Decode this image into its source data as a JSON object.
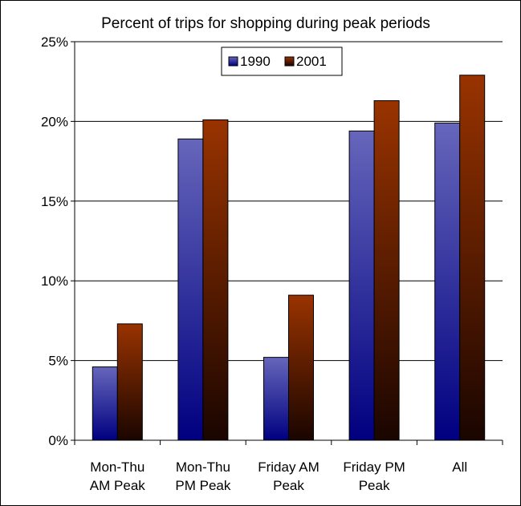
{
  "chart_data": {
    "type": "bar",
    "title": "Percent of trips for shopping during peak periods",
    "categories": [
      [
        "Mon-Thu",
        "AM Peak"
      ],
      [
        "Mon-Thu",
        "PM Peak"
      ],
      [
        "Friday AM",
        "Peak"
      ],
      [
        "Friday PM",
        "Peak"
      ],
      [
        "All"
      ]
    ],
    "series": [
      {
        "name": "1990",
        "values": [
          4.6,
          18.9,
          5.2,
          19.4,
          19.9
        ],
        "gradient": {
          "top": "#6666bb",
          "bottom": "#000080"
        }
      },
      {
        "name": "2001",
        "values": [
          7.3,
          20.1,
          9.1,
          21.3,
          22.9
        ],
        "gradient": {
          "top": "#993300",
          "bottom": "#1a0500"
        }
      }
    ],
    "ylim": [
      0,
      25
    ],
    "yticks": [
      0,
      5,
      10,
      15,
      20,
      25
    ],
    "ytick_labels": [
      "0%",
      "5%",
      "10%",
      "15%",
      "20%",
      "25%"
    ],
    "grid": true,
    "legend_position": "top-center"
  }
}
